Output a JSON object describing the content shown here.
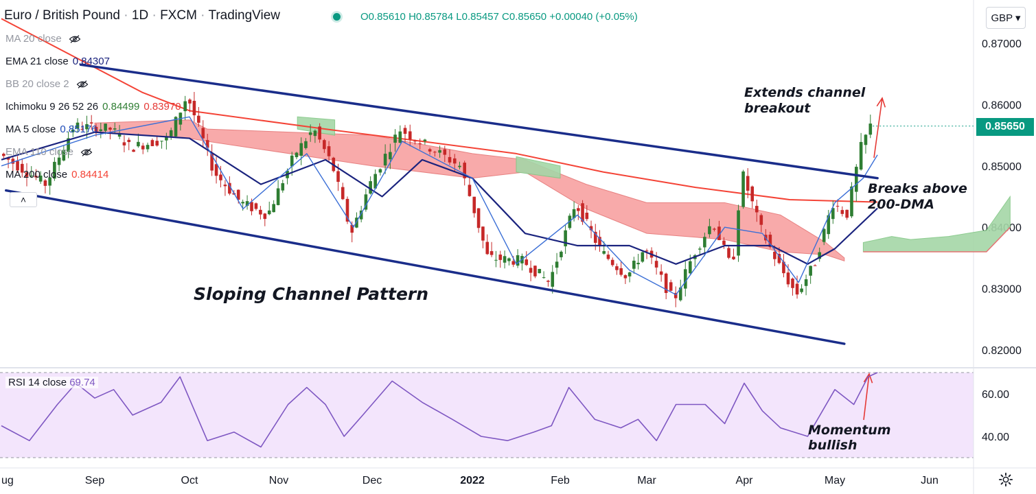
{
  "header": {
    "symbol": "Euro / British Pound",
    "interval": "1D",
    "exchange": "FXCM",
    "platform": "TradingView",
    "open": "O0.85610",
    "high": "H0.85784",
    "low": "L0.85457",
    "close": "C0.85650",
    "change": "+0.00040 (+0.05%)",
    "status_color": "#089981"
  },
  "currency_button": "GBP ▾",
  "collapse_label": "˄",
  "indicators": [
    {
      "label": "MA 20 close",
      "value": "",
      "value2": "",
      "hidden": true,
      "color": "#9598a1"
    },
    {
      "label": "EMA 21 close",
      "value": "0.84307",
      "value2": "",
      "hidden": false,
      "color": "#1a237e"
    },
    {
      "label": "BB 20 close 2",
      "value": "",
      "value2": "",
      "hidden": true,
      "color": "#9598a1"
    },
    {
      "label": "Ichimoku 9 26 52 26",
      "value": "0.84499",
      "value2": "0.83970",
      "hidden": false,
      "color": "#2e7d32",
      "color2": "#e53935"
    },
    {
      "label": "MA 5 close",
      "value": "0.85176",
      "value2": "",
      "hidden": false,
      "color": "#1e4bb8"
    },
    {
      "label": "EMA 110 close",
      "value": "",
      "value2": "",
      "hidden": true,
      "color": "#9598a1"
    },
    {
      "label": "MA 200 close",
      "value": "0.84414",
      "value2": "",
      "hidden": false,
      "color": "#f44336"
    }
  ],
  "rsi": {
    "label": "RSI 14 close",
    "value": "69.74",
    "color": "#7e57c2"
  },
  "annotations": {
    "channel": "Sloping Channel Pattern",
    "breakout_1": "Extends channel",
    "breakout_2": "breakout",
    "dma_1": "Breaks above",
    "dma_2": "200-DMA",
    "momentum_1": "Momentum",
    "momentum_2": "bullish"
  },
  "last_price": "0.85650",
  "colors": {
    "up": "#2e7d32",
    "down": "#c62828",
    "channel": "#1a2d8a",
    "ma200": "#f44336",
    "ema21": "#1a237e",
    "ma5": "#3b6fd6",
    "cloud_bear": "#f8a1a1",
    "cloud_bull": "#a5d6a7",
    "rsi_bg": "#f3e5fc",
    "last_price_tag": "#089981"
  },
  "chart_data": {
    "type": "candlestick",
    "title": "Euro / British Pound · 1D · FXCM",
    "y_ticks": [
      "0.87000",
      "0.86000",
      "0.85000",
      "0.84000",
      "0.83000",
      "0.82000"
    ],
    "ylim": [
      0.8185,
      0.8746
    ],
    "x_ticks": [
      {
        "label": "Aug",
        "x": 0
      },
      {
        "label": "Sep",
        "x": 1
      },
      {
        "label": "Oct",
        "x": 2
      },
      {
        "label": "Nov",
        "x": 3
      },
      {
        "label": "Dec",
        "x": 4
      },
      {
        "label": "2022",
        "x": 5
      },
      {
        "label": "Feb",
        "x": 6
      },
      {
        "label": "Mar",
        "x": 7
      },
      {
        "label": "Apr",
        "x": 8
      },
      {
        "label": "May",
        "x": 9
      },
      {
        "label": "Jun",
        "x": 10
      }
    ],
    "price_path": [
      [
        0.0,
        0.852
      ],
      [
        0.5,
        0.847
      ],
      [
        0.8,
        0.8565
      ],
      [
        1.2,
        0.856
      ],
      [
        1.4,
        0.853
      ],
      [
        1.8,
        0.8545
      ],
      [
        2.0,
        0.8615
      ],
      [
        2.3,
        0.849
      ],
      [
        2.6,
        0.844
      ],
      [
        2.9,
        0.842
      ],
      [
        3.2,
        0.852
      ],
      [
        3.4,
        0.856
      ],
      [
        3.6,
        0.85
      ],
      [
        3.8,
        0.839
      ],
      [
        4.0,
        0.847
      ],
      [
        4.3,
        0.856
      ],
      [
        4.6,
        0.853
      ],
      [
        4.9,
        0.85
      ],
      [
        5.2,
        0.835
      ],
      [
        5.6,
        0.8345
      ],
      [
        5.9,
        0.831
      ],
      [
        6.2,
        0.844
      ],
      [
        6.5,
        0.836
      ],
      [
        6.8,
        0.832
      ],
      [
        7.0,
        0.8365
      ],
      [
        7.3,
        0.828
      ],
      [
        7.5,
        0.8355
      ],
      [
        7.7,
        0.841
      ],
      [
        7.9,
        0.833
      ],
      [
        8.0,
        0.849
      ],
      [
        8.2,
        0.84
      ],
      [
        8.4,
        0.834
      ],
      [
        8.6,
        0.829
      ],
      [
        8.8,
        0.834
      ],
      [
        9.0,
        0.844
      ],
      [
        9.15,
        0.842
      ],
      [
        9.3,
        0.853
      ],
      [
        9.4,
        0.8565
      ]
    ],
    "channel_upper": [
      [
        0.85,
        0.8665
      ],
      [
        9.45,
        0.848
      ]
    ],
    "channel_lower": [
      [
        0.05,
        0.846
      ],
      [
        9.1,
        0.821
      ]
    ],
    "ma200": [
      [
        0.0,
        0.874
      ],
      [
        1.5,
        0.862
      ],
      [
        2.0,
        0.859
      ],
      [
        3.5,
        0.856
      ],
      [
        4.5,
        0.854
      ],
      [
        5.5,
        0.852
      ],
      [
        6.5,
        0.849
      ],
      [
        7.5,
        0.8465
      ],
      [
        8.5,
        0.8445
      ],
      [
        9.45,
        0.8441
      ]
    ],
    "ema21": [
      [
        0.0,
        0.851
      ],
      [
        1.0,
        0.8555
      ],
      [
        2.0,
        0.8545
      ],
      [
        2.8,
        0.847
      ],
      [
        3.5,
        0.851
      ],
      [
        4.1,
        0.845
      ],
      [
        4.5,
        0.851
      ],
      [
        5.0,
        0.848
      ],
      [
        5.6,
        0.839
      ],
      [
        6.2,
        0.837
      ],
      [
        6.8,
        0.837
      ],
      [
        7.3,
        0.834
      ],
      [
        7.8,
        0.837
      ],
      [
        8.3,
        0.837
      ],
      [
        8.7,
        0.834
      ],
      [
        9.0,
        0.8365
      ],
      [
        9.45,
        0.8431
      ]
    ],
    "ma5": [
      [
        0.0,
        0.85
      ],
      [
        1.0,
        0.855
      ],
      [
        2.0,
        0.858
      ],
      [
        2.6,
        0.843
      ],
      [
        3.3,
        0.852
      ],
      [
        3.8,
        0.84
      ],
      [
        4.3,
        0.854
      ],
      [
        5.0,
        0.848
      ],
      [
        5.5,
        0.834
      ],
      [
        6.2,
        0.842
      ],
      [
        6.8,
        0.833
      ],
      [
        7.3,
        0.829
      ],
      [
        7.8,
        0.84
      ],
      [
        8.2,
        0.839
      ],
      [
        8.6,
        0.831
      ],
      [
        9.0,
        0.844
      ],
      [
        9.3,
        0.848
      ],
      [
        9.45,
        0.8518
      ]
    ],
    "cloud_bear": [
      [
        1.0,
        0.857,
        0.8555
      ],
      [
        2.0,
        0.8575,
        0.8545
      ],
      [
        2.2,
        0.856,
        0.854
      ],
      [
        4.0,
        0.855,
        0.85
      ],
      [
        5.0,
        0.852,
        0.848
      ],
      [
        5.6,
        0.851,
        0.849
      ],
      [
        6.3,
        0.847,
        0.843
      ],
      [
        7.0,
        0.844,
        0.839
      ],
      [
        7.8,
        0.844,
        0.838
      ],
      [
        8.4,
        0.842,
        0.836
      ],
      [
        8.9,
        0.8375,
        0.8355
      ],
      [
        9.1,
        0.835,
        0.8345
      ]
    ],
    "cloud_bull": [
      [
        3.2,
        0.858,
        0.856
      ],
      [
        3.6,
        0.8575,
        0.855
      ],
      [
        5.5,
        0.8515,
        0.849
      ],
      [
        6.0,
        0.85,
        0.848
      ],
      [
        9.1,
        0.837,
        0.835
      ],
      [
        9.5,
        0.8385,
        0.8355
      ],
      [
        9.8,
        0.8365,
        0.836
      ],
      [
        10.1,
        0.8375,
        0.836
      ],
      [
        10.5,
        0.839,
        0.836
      ],
      [
        10.8,
        0.845,
        0.8395
      ]
    ],
    "cloud_green_tail": [
      [
        9.3,
        0.8375,
        0.836
      ],
      [
        9.6,
        0.8385,
        0.836
      ],
      [
        9.8,
        0.838,
        0.836
      ],
      [
        10.2,
        0.8385,
        0.836
      ],
      [
        10.6,
        0.8395,
        0.836
      ],
      [
        10.85,
        0.845,
        0.84
      ]
    ],
    "rsi_ylim": [
      30,
      75
    ],
    "rsi_ticks": [
      "60.00",
      "40.00"
    ],
    "rsi_bands": [
      70,
      30
    ],
    "rsi_path": [
      [
        0.0,
        45
      ],
      [
        0.3,
        38
      ],
      [
        0.6,
        55
      ],
      [
        0.8,
        65
      ],
      [
        1.0,
        58
      ],
      [
        1.2,
        62
      ],
      [
        1.4,
        50
      ],
      [
        1.7,
        56
      ],
      [
        1.9,
        68
      ],
      [
        2.2,
        38
      ],
      [
        2.5,
        42
      ],
      [
        2.8,
        35
      ],
      [
        3.1,
        55
      ],
      [
        3.3,
        63
      ],
      [
        3.5,
        55
      ],
      [
        3.7,
        40
      ],
      [
        3.9,
        50
      ],
      [
        4.2,
        66
      ],
      [
        4.5,
        56
      ],
      [
        4.8,
        48
      ],
      [
        5.1,
        40
      ],
      [
        5.4,
        38
      ],
      [
        5.7,
        42
      ],
      [
        5.9,
        45
      ],
      [
        6.1,
        63
      ],
      [
        6.4,
        48
      ],
      [
        6.7,
        44
      ],
      [
        6.9,
        48
      ],
      [
        7.1,
        38
      ],
      [
        7.3,
        55
      ],
      [
        7.6,
        55
      ],
      [
        7.8,
        46
      ],
      [
        8.0,
        65
      ],
      [
        8.2,
        52
      ],
      [
        8.4,
        44
      ],
      [
        8.7,
        40
      ],
      [
        9.0,
        62
      ],
      [
        9.2,
        55
      ],
      [
        9.35,
        68
      ],
      [
        9.45,
        70
      ]
    ]
  }
}
